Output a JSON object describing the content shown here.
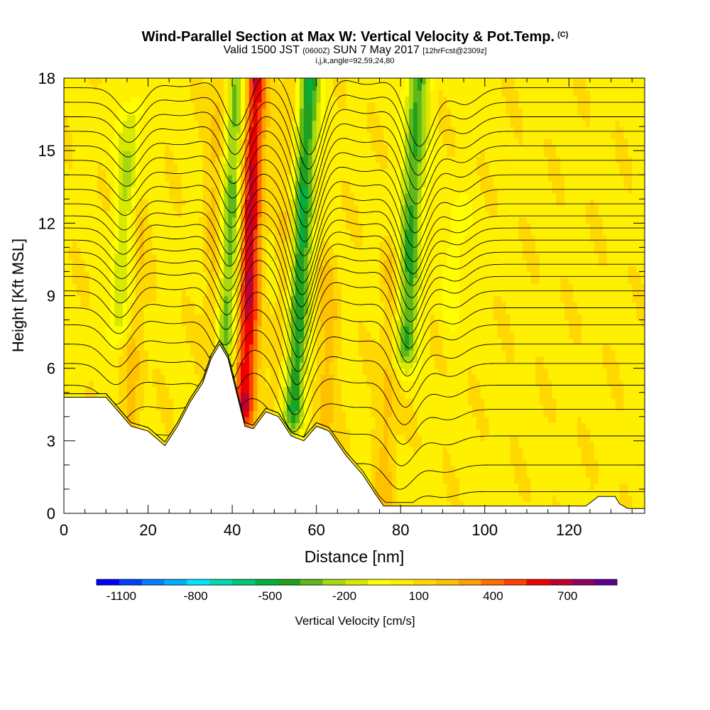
{
  "chart_data": {
    "type": "heatmap",
    "title": "Wind-Parallel Section at Max W: Vertical Velocity & Pot.Temp.",
    "title_mark": "(C)",
    "subtitle_parts": [
      "Valid 1500 JST",
      "(0600Z)",
      "SUN 7 May 2017",
      "[12hrFcst@2309z]"
    ],
    "subtitle2": "i,j,k,angle=92,59,24,80",
    "xlabel": "Distance [nm]",
    "ylabel": "Height [Kft MSL]",
    "xlim": [
      0,
      138
    ],
    "ylim": [
      0,
      18
    ],
    "x_ticks": [
      "0",
      "20",
      "40",
      "60",
      "80",
      "100",
      "120"
    ],
    "y_ticks": [
      "0",
      "3",
      "6",
      "9",
      "12",
      "15",
      "18"
    ],
    "colorbar_label": "Vertical Velocity [cm/s]",
    "colorbar_ticks": [
      "-1100",
      "-800",
      "-500",
      "-200",
      "100",
      "400",
      "700"
    ],
    "colorbar_range": [
      -1200,
      900
    ],
    "colorbar_colors": [
      "#0000ff",
      "#0040ff",
      "#0080ff",
      "#00b0ff",
      "#00e5ff",
      "#00d8b0",
      "#00c878",
      "#00b040",
      "#20a020",
      "#60b818",
      "#a8d810",
      "#d8e800",
      "#ffff00",
      "#fff000",
      "#ffd800",
      "#ffc000",
      "#ffa000",
      "#ff7000",
      "#ff4000",
      "#ee0000",
      "#c00030",
      "#900060",
      "#600090"
    ],
    "background_value_range": [
      0,
      100
    ],
    "terrain_profile": [
      {
        "x": 0,
        "h": 4.8
      },
      {
        "x": 10,
        "h": 4.8
      },
      {
        "x": 13,
        "h": 4.2
      },
      {
        "x": 16,
        "h": 3.6
      },
      {
        "x": 20,
        "h": 3.4
      },
      {
        "x": 24,
        "h": 2.8
      },
      {
        "x": 27,
        "h": 3.6
      },
      {
        "x": 30,
        "h": 4.6
      },
      {
        "x": 33,
        "h": 5.4
      },
      {
        "x": 35,
        "h": 6.4
      },
      {
        "x": 37,
        "h": 7.0
      },
      {
        "x": 39,
        "h": 6.4
      },
      {
        "x": 41,
        "h": 5.0
      },
      {
        "x": 43,
        "h": 3.6
      },
      {
        "x": 45,
        "h": 3.5
      },
      {
        "x": 48,
        "h": 4.2
      },
      {
        "x": 51,
        "h": 4.0
      },
      {
        "x": 54,
        "h": 3.2
      },
      {
        "x": 57,
        "h": 3.0
      },
      {
        "x": 60,
        "h": 3.6
      },
      {
        "x": 63,
        "h": 3.4
      },
      {
        "x": 67,
        "h": 2.4
      },
      {
        "x": 71,
        "h": 1.6
      },
      {
        "x": 74,
        "h": 0.8
      },
      {
        "x": 76,
        "h": 0.3
      },
      {
        "x": 124,
        "h": 0.3
      },
      {
        "x": 127,
        "h": 0.7
      },
      {
        "x": 131,
        "h": 0.7
      },
      {
        "x": 132,
        "h": 0.4
      },
      {
        "x": 134,
        "h": 0.2
      },
      {
        "x": 138,
        "h": 0.2
      }
    ],
    "updrafts": [
      {
        "x": 44,
        "w": 600,
        "zmin": 4.5,
        "zmax": 18
      },
      {
        "x": 36,
        "w": 180,
        "zmin": 6.5,
        "zmax": 18
      },
      {
        "x": 53,
        "w": 150,
        "zmin": 5.0,
        "zmax": 18
      },
      {
        "x": 63,
        "w": 150,
        "zmin": 3.0,
        "zmax": 10
      },
      {
        "x": 78,
        "w": 150,
        "zmin": 0.5,
        "zmax": 10
      },
      {
        "x": 17,
        "w": 150,
        "zmin": 4.0,
        "zmax": 12
      }
    ],
    "downdrafts": [
      {
        "x": 39,
        "w": -420,
        "zmin": 5.5,
        "zmax": 18
      },
      {
        "x": 56,
        "w": -550,
        "zmin": 4.5,
        "zmax": 18
      },
      {
        "x": 82,
        "w": -450,
        "zmin": 7.0,
        "zmax": 18
      },
      {
        "x": 14,
        "w": -250,
        "zmin": 8.0,
        "zmax": 16
      },
      {
        "x": 93,
        "w": -120,
        "zmin": 9.0,
        "zmax": 12
      }
    ],
    "theta_isentrope_heights": [
      0.9,
      2.0,
      3.2,
      4.3,
      5.3,
      6.2,
      7.0,
      7.8,
      8.5,
      9.2,
      9.8,
      10.3,
      10.8,
      11.3,
      11.8,
      12.3,
      12.8,
      13.4,
      14.0,
      14.6,
      15.2,
      15.8,
      16.4,
      17.0,
      17.6
    ]
  }
}
